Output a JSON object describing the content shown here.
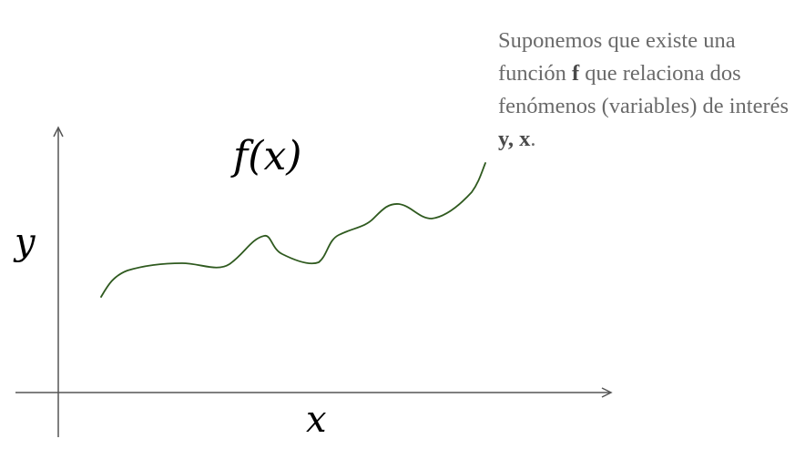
{
  "labels": {
    "function": "f(x)",
    "y_axis": "y",
    "x_axis": "x"
  },
  "caption": {
    "part1": "Suponemos que existe una función ",
    "bold_function": "f",
    "part2": " que relaciona dos fenómenos (variables) de interés ",
    "bold_variables": "y, x",
    "part3": "."
  },
  "colors": {
    "axis": "#555555",
    "curve": "#2f5a1f",
    "caption_text": "#6a6a6a"
  }
}
